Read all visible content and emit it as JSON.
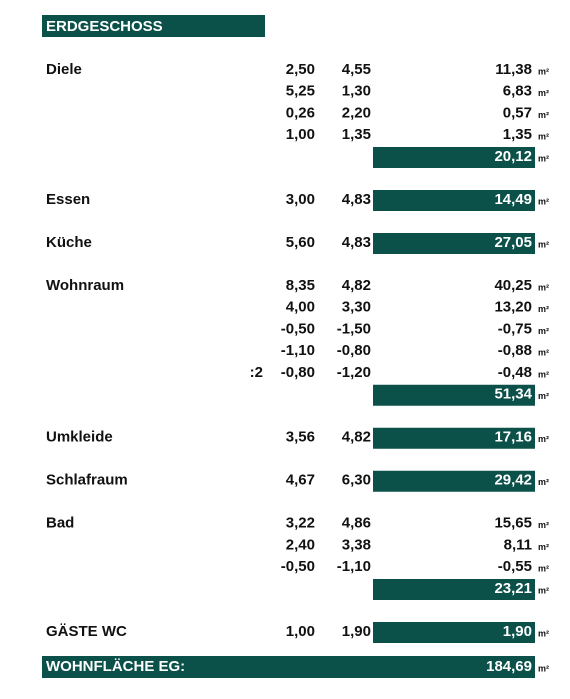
{
  "header": {
    "title": "ERDGESCHOSS"
  },
  "unit": "m²",
  "rooms": [
    {
      "name": "Diele",
      "rows": [
        {
          "a": "2,50",
          "b": "4,55",
          "area": "11,38"
        },
        {
          "a": "5,25",
          "b": "1,30",
          "area": "6,83"
        },
        {
          "a": "0,26",
          "b": "2,20",
          "area": "0,57"
        },
        {
          "a": "1,00",
          "b": "1,35",
          "area": "1,35"
        }
      ],
      "total": "20,12"
    },
    {
      "name": "Essen",
      "rows": [
        {
          "a": "3,00",
          "b": "4,83",
          "area": "14,49"
        }
      ]
    },
    {
      "name": "Küche",
      "rows": [
        {
          "a": "5,60",
          "b": "4,83",
          "area": "27,05"
        }
      ]
    },
    {
      "name": "Wohnraum",
      "rows": [
        {
          "a": "8,35",
          "b": "4,82",
          "area": "40,25"
        },
        {
          "a": "4,00",
          "b": "3,30",
          "area": "13,20"
        },
        {
          "a": "-0,50",
          "b": "-1,50",
          "area": "-0,75"
        },
        {
          "a": "-1,10",
          "b": "-0,80",
          "area": "-0,88"
        },
        {
          "prefix": ":2",
          "a": "-0,80",
          "b": "-1,20",
          "area": "-0,48"
        }
      ],
      "total": "51,34"
    },
    {
      "name": "Umkleide",
      "rows": [
        {
          "a": "3,56",
          "b": "4,82",
          "area": "17,16"
        }
      ]
    },
    {
      "name": "Schlafraum",
      "rows": [
        {
          "a": "4,67",
          "b": "6,30",
          "area": "29,42"
        }
      ]
    },
    {
      "name": "Bad",
      "rows": [
        {
          "a": "3,22",
          "b": "4,86",
          "area": "15,65"
        },
        {
          "a": "2,40",
          "b": "3,38",
          "area": "8,11"
        },
        {
          "a": "-0,50",
          "b": "-1,10",
          "area": "-0,55"
        }
      ],
      "total": "23,21"
    },
    {
      "name": "GÄSTE WC",
      "rows": [
        {
          "a": "1,00",
          "b": "1,90",
          "area": "1,90"
        }
      ]
    }
  ],
  "footer": {
    "label": "WOHNFLÄCHE  EG:",
    "total": "184,69"
  }
}
